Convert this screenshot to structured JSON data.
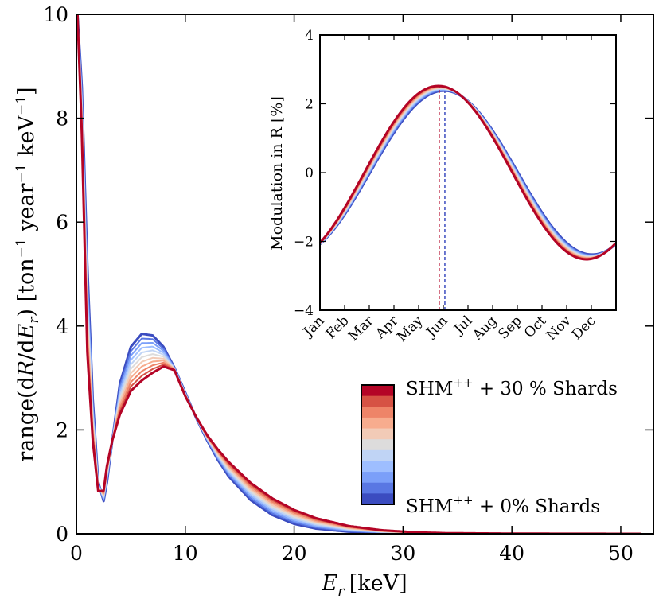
{
  "chart_data": [
    {
      "type": "line",
      "panel": "main",
      "xlabel": "E_r [keV]",
      "xlabel_parts": {
        "sym": "E",
        "sub": "r",
        "unit": "[keV]"
      },
      "ylabel": "range(dR/dE_r) [ton^-1 year^-1 keV^-1]",
      "ylabel_parts": {
        "pre": "range(d",
        "R": "R",
        "mid": "/d",
        "E": "E",
        "sub": "r",
        "rest": ") [ton",
        "sup1": "−1",
        "yr": " year",
        "sup2": "−1",
        "kev": " keV",
        "sup3": "−1",
        "close": "]"
      },
      "xlim": [
        0,
        53
      ],
      "ylim": [
        0,
        10
      ],
      "xticks": [
        "0",
        "10",
        "20",
        "30",
        "40",
        "50"
      ],
      "yticks": [
        "0",
        "2",
        "4",
        "6",
        "8",
        "10"
      ],
      "grid": false,
      "series": [
        {
          "color": "#3b4cc0",
          "x": [
            0.1,
            0.5,
            1,
            1.5,
            2,
            2.5,
            2.8,
            3.3,
            4,
            5,
            6,
            7,
            8,
            9,
            10,
            11,
            12,
            13,
            14,
            16,
            18,
            20,
            22,
            25,
            28,
            31,
            34,
            40,
            45,
            50
          ],
          "y": [
            10,
            8.6,
            5.2,
            2.6,
            1.0,
            0.63,
            0.98,
            1.8,
            2.9,
            3.6,
            3.85,
            3.82,
            3.6,
            3.2,
            2.72,
            2.23,
            1.8,
            1.42,
            1.1,
            0.65,
            0.36,
            0.19,
            0.1,
            0.04,
            0.015,
            0.006,
            0.002,
            0.0005,
            0.0002,
            0.0001
          ]
        },
        {
          "color": "#b40426",
          "x": [
            0.1,
            0.5,
            1,
            1.5,
            2,
            2.5,
            2.8,
            3.3,
            4,
            5,
            6,
            7,
            8,
            9,
            10,
            11,
            12,
            13,
            14,
            16,
            18,
            20,
            22,
            25,
            28,
            31,
            34,
            40,
            45,
            50
          ],
          "y": [
            10,
            7.7,
            3.5,
            1.8,
            0.82,
            0.83,
            1.3,
            1.8,
            2.3,
            2.75,
            2.95,
            3.1,
            3.22,
            3.15,
            2.65,
            2.25,
            1.9,
            1.62,
            1.38,
            0.98,
            0.68,
            0.46,
            0.3,
            0.15,
            0.07,
            0.03,
            0.012,
            0.004,
            0.0015,
            0.0005
          ]
        }
      ]
    },
    {
      "type": "line",
      "panel": "inset",
      "ylabel": "Modulation in R [%]",
      "xlabel": "",
      "ylim": [
        -4,
        4
      ],
      "xlim": [
        0,
        365
      ],
      "xticks": [
        "Jan",
        "Feb",
        "Mar",
        "Apr",
        "May",
        "Jun",
        "Jul",
        "Aug",
        "Sep",
        "Oct",
        "Nov",
        "Dec"
      ],
      "yticks": [
        "−4",
        "−2",
        "0",
        "2",
        "4"
      ],
      "grid": false,
      "series": [
        {
          "color": "#3b4cc0",
          "amplitude": 2.38,
          "peak_day": 153,
          "peak_marker_day": 154
        },
        {
          "color": "#b40426",
          "amplitude": 2.52,
          "peak_day": 146,
          "peak_marker_day": 147
        }
      ]
    }
  ],
  "colorbar": {
    "colors": [
      "#3b4cc0",
      "#5977e3",
      "#7b9ff9",
      "#9ebeff",
      "#c0d4f5",
      "#dddcdc",
      "#f2cbb7",
      "#f7ac8e",
      "#ee8468",
      "#d65244",
      "#b40426"
    ],
    "top_label": {
      "base": "SHM",
      "sup": "++",
      "rest": " + 30 % Shards"
    },
    "bottom_label": {
      "base": "SHM",
      "sup": "++",
      "rest": " + 0% Shards"
    }
  }
}
